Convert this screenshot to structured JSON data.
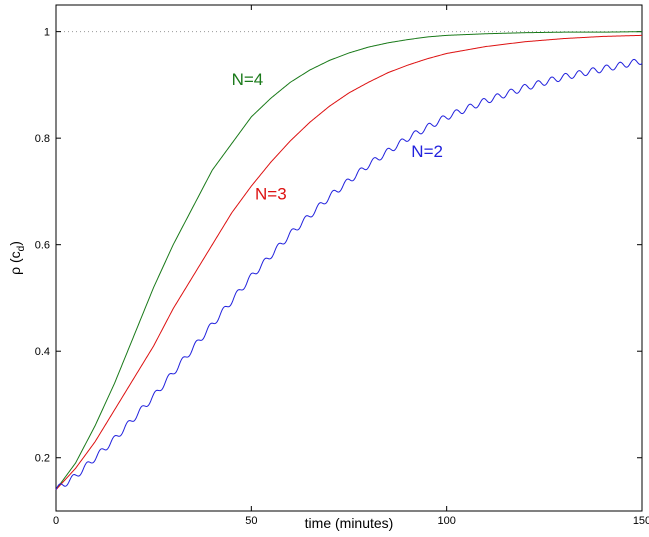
{
  "chart_data": {
    "type": "line",
    "title": "",
    "xlabel": "time (minutes)",
    "ylabel_main": "ρ (c",
    "ylabel_sub": "d",
    "ylabel_close": ")",
    "xlim": [
      0,
      150
    ],
    "ylim": [
      0.1,
      1.05
    ],
    "x_ticks": [
      0,
      50,
      100,
      150
    ],
    "y_ticks": [
      0.2,
      0.4,
      0.6,
      0.8,
      1
    ],
    "x_tick_labels": [
      "0",
      "50",
      "100",
      "150"
    ],
    "y_tick_labels": [
      "0.2",
      "0.4",
      "0.6",
      "0.8",
      "1"
    ],
    "reference_line": {
      "y": 1,
      "style": "dotted",
      "color": "#999999"
    },
    "grid": false,
    "series": [
      {
        "name": "N=4",
        "color": "#1a7a1a",
        "oscillation": 0,
        "label_at": [
          49,
          0.9
        ],
        "points": [
          [
            0,
            0.14
          ],
          [
            5,
            0.19
          ],
          [
            10,
            0.26
          ],
          [
            15,
            0.34
          ],
          [
            20,
            0.43
          ],
          [
            25,
            0.52
          ],
          [
            30,
            0.6
          ],
          [
            35,
            0.67
          ],
          [
            40,
            0.74
          ],
          [
            45,
            0.79
          ],
          [
            50,
            0.84
          ],
          [
            55,
            0.875
          ],
          [
            60,
            0.905
          ],
          [
            65,
            0.928
          ],
          [
            70,
            0.946
          ],
          [
            75,
            0.96
          ],
          [
            80,
            0.971
          ],
          [
            85,
            0.979
          ],
          [
            90,
            0.985
          ],
          [
            95,
            0.99
          ],
          [
            100,
            0.993
          ],
          [
            110,
            0.996
          ],
          [
            120,
            0.998
          ],
          [
            130,
            0.999
          ],
          [
            140,
            0.999
          ],
          [
            150,
            1.0
          ]
        ]
      },
      {
        "name": "N=3",
        "color": "#dd1111",
        "oscillation": 0,
        "label_at": [
          55,
          0.685
        ],
        "points": [
          [
            0,
            0.14
          ],
          [
            5,
            0.18
          ],
          [
            10,
            0.23
          ],
          [
            15,
            0.29
          ],
          [
            20,
            0.35
          ],
          [
            25,
            0.41
          ],
          [
            30,
            0.48
          ],
          [
            35,
            0.54
          ],
          [
            40,
            0.6
          ],
          [
            45,
            0.66
          ],
          [
            50,
            0.71
          ],
          [
            55,
            0.755
          ],
          [
            60,
            0.795
          ],
          [
            65,
            0.83
          ],
          [
            70,
            0.86
          ],
          [
            75,
            0.885
          ],
          [
            80,
            0.905
          ],
          [
            85,
            0.923
          ],
          [
            90,
            0.937
          ],
          [
            95,
            0.949
          ],
          [
            100,
            0.959
          ],
          [
            110,
            0.972
          ],
          [
            120,
            0.981
          ],
          [
            130,
            0.987
          ],
          [
            140,
            0.991
          ],
          [
            150,
            0.993
          ]
        ]
      },
      {
        "name": "N=2",
        "color": "#2222dd",
        "oscillation": 0.006,
        "label_at": [
          95,
          0.765
        ],
        "points": [
          [
            0,
            0.14
          ],
          [
            5,
            0.165
          ],
          [
            10,
            0.2
          ],
          [
            15,
            0.235
          ],
          [
            20,
            0.275
          ],
          [
            25,
            0.315
          ],
          [
            30,
            0.36
          ],
          [
            35,
            0.405
          ],
          [
            40,
            0.45
          ],
          [
            45,
            0.495
          ],
          [
            50,
            0.54
          ],
          [
            55,
            0.58
          ],
          [
            60,
            0.62
          ],
          [
            65,
            0.655
          ],
          [
            70,
            0.69
          ],
          [
            75,
            0.72
          ],
          [
            80,
            0.75
          ],
          [
            85,
            0.775
          ],
          [
            90,
            0.8
          ],
          [
            95,
            0.82
          ],
          [
            100,
            0.84
          ],
          [
            110,
            0.87
          ],
          [
            120,
            0.895
          ],
          [
            130,
            0.915
          ],
          [
            140,
            0.93
          ],
          [
            150,
            0.945
          ]
        ]
      }
    ]
  }
}
